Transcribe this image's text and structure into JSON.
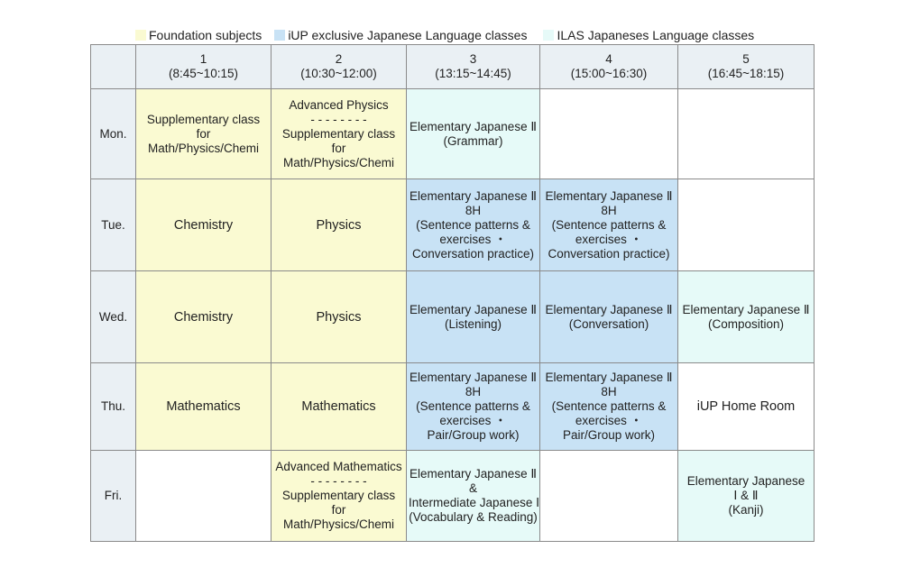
{
  "legend": [
    {
      "label": "Foundation subjects",
      "color": "#fafad2"
    },
    {
      "label": "iUP exclusive Japanese Language classes",
      "color": "#c8e2f5"
    },
    {
      "label": "ILAS Japaneses Language classes",
      "color": "#e6faf8"
    }
  ],
  "colors": {
    "foundation": "#fafad2",
    "iup": "#c8e2f5",
    "ilas": "#e6faf8",
    "header": "#eaf0f4",
    "empty": "#ffffff"
  },
  "periods": [
    {
      "num": "1",
      "time": "(8:45~10:15)"
    },
    {
      "num": "2",
      "time": "(10:30~12:00)"
    },
    {
      "num": "3",
      "time": "(13:15~14:45)"
    },
    {
      "num": "4",
      "time": "(15:00~16:30)"
    },
    {
      "num": "5",
      "time": "(16:45~18:15)"
    }
  ],
  "rows": [
    {
      "day": "Mon.",
      "cells": [
        {
          "type": "foundation",
          "lines": [
            "Supplementary class",
            "for",
            "Math/Physics/Chemi"
          ]
        },
        {
          "type": "foundation",
          "lines": [
            "Advanced Physics",
            "- - - - - - - -",
            "Supplementary class",
            "for",
            "Math/Physics/Chemi"
          ]
        },
        {
          "type": "ilas",
          "lines": [
            "Elementary Japanese Ⅱ",
            "(Grammar)"
          ]
        },
        {
          "type": "empty",
          "lines": []
        },
        {
          "type": "empty",
          "lines": []
        }
      ]
    },
    {
      "day": "Tue.",
      "cells": [
        {
          "type": "foundation",
          "lines": [
            "Chemistry"
          ],
          "big": true
        },
        {
          "type": "foundation",
          "lines": [
            "Physics"
          ],
          "big": true
        },
        {
          "type": "iup",
          "lines": [
            "Elementary Japanese Ⅱ",
            "8H",
            "(Sentence patterns &",
            "exercises ・",
            "Conversation practice)"
          ]
        },
        {
          "type": "iup",
          "lines": [
            "Elementary Japanese Ⅱ",
            "8H",
            "(Sentence patterns &",
            "exercises ・",
            "Conversation practice)"
          ]
        },
        {
          "type": "empty",
          "lines": []
        }
      ]
    },
    {
      "day": "Wed.",
      "cells": [
        {
          "type": "foundation",
          "lines": [
            "Chemistry"
          ],
          "big": true
        },
        {
          "type": "foundation",
          "lines": [
            "Physics"
          ],
          "big": true
        },
        {
          "type": "iup",
          "lines": [
            "Elementary Japanese Ⅱ",
            "(Listening)"
          ]
        },
        {
          "type": "iup",
          "lines": [
            "Elementary Japanese Ⅱ",
            "(Conversation)"
          ]
        },
        {
          "type": "ilas",
          "lines": [
            "Elementary Japanese Ⅱ",
            "(Composition)"
          ]
        }
      ]
    },
    {
      "day": "Thu.",
      "cells": [
        {
          "type": "foundation",
          "lines": [
            "Mathematics"
          ],
          "big": true
        },
        {
          "type": "foundation",
          "lines": [
            "Mathematics"
          ],
          "big": true
        },
        {
          "type": "iup",
          "lines": [
            "Elementary Japanese Ⅱ",
            "8H",
            "(Sentence patterns &",
            "exercises ・",
            "Pair/Group work)"
          ]
        },
        {
          "type": "iup",
          "lines": [
            "Elementary Japanese Ⅱ",
            "8H",
            "(Sentence patterns &",
            "exercises ・",
            "Pair/Group work)"
          ]
        },
        {
          "type": "empty",
          "lines": [
            "iUP Home Room"
          ],
          "big": true
        }
      ]
    },
    {
      "day": "Fri.",
      "cells": [
        {
          "type": "empty",
          "lines": []
        },
        {
          "type": "foundation",
          "lines": [
            "Advanced Mathematics",
            "- - - - - - - -",
            "Supplementary class",
            "for",
            "Math/Physics/Chemi"
          ]
        },
        {
          "type": "ilas",
          "lines": [
            "Elementary Japanese Ⅱ",
            "&",
            "Intermediate Japanese Ⅰ",
            "(Vocabulary & Reading)"
          ]
        },
        {
          "type": "empty",
          "lines": []
        },
        {
          "type": "ilas",
          "lines": [
            "Elementary Japanese",
            "Ⅰ & Ⅱ",
            "(Kanji)"
          ]
        }
      ]
    }
  ]
}
